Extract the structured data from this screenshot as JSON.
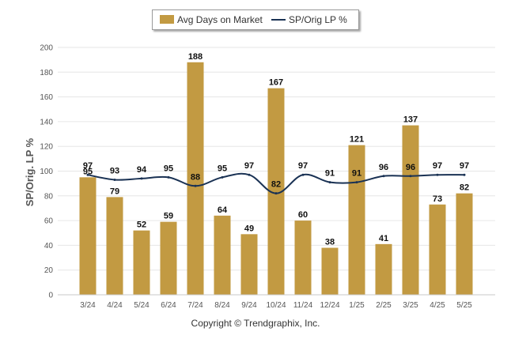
{
  "legend": {
    "bar_label": "Avg Days on Market",
    "line_label": "SP/Orig LP %"
  },
  "copyright": "Copyright © Trendgraphix, Inc.",
  "colors": {
    "bar": "#c29a42",
    "line": "#1a3254",
    "grid": "#e6e6e6",
    "axis_text": "#555555",
    "label_text": "#111111"
  },
  "chart_data": {
    "type": "bar",
    "ylabel": "SP/Orig. LP %",
    "ylim": [
      0,
      200
    ],
    "yticks": [
      "0",
      "20",
      "40",
      "60",
      "80",
      "100",
      "120",
      "140",
      "160",
      "180",
      "200"
    ],
    "grid": true,
    "legend_position": "top-center",
    "categories": [
      "3/24",
      "4/24",
      "5/24",
      "6/24",
      "7/24",
      "8/24",
      "9/24",
      "10/24",
      "11/24",
      "12/24",
      "1/25",
      "2/25",
      "3/25",
      "4/25",
      "5/25"
    ],
    "series": [
      {
        "name": "Avg Days on Market",
        "type": "bar",
        "values": [
          95,
          79,
          52,
          59,
          188,
          64,
          49,
          167,
          60,
          38,
          121,
          41,
          137,
          73,
          82
        ]
      },
      {
        "name": "SP/Orig LP %",
        "type": "line",
        "values": [
          97,
          93,
          94,
          95,
          88,
          95,
          97,
          82,
          97,
          91,
          91,
          96,
          96,
          97,
          97
        ]
      }
    ]
  }
}
